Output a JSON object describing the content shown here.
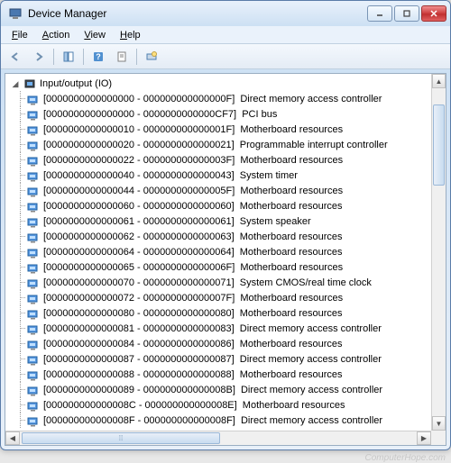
{
  "window": {
    "title": "Device Manager"
  },
  "menus": [
    "File",
    "Action",
    "View",
    "Help"
  ],
  "category": {
    "label": "Input/output (IO)"
  },
  "items": [
    {
      "range": "[0000000000000000 - 000000000000000F]",
      "label": "Direct memory access controller"
    },
    {
      "range": "[0000000000000000 - 0000000000000CF7]",
      "label": "PCI bus"
    },
    {
      "range": "[0000000000000010 - 000000000000001F]",
      "label": "Motherboard resources"
    },
    {
      "range": "[0000000000000020 - 0000000000000021]",
      "label": "Programmable interrupt controller"
    },
    {
      "range": "[0000000000000022 - 000000000000003F]",
      "label": "Motherboard resources"
    },
    {
      "range": "[0000000000000040 - 0000000000000043]",
      "label": "System timer"
    },
    {
      "range": "[0000000000000044 - 000000000000005F]",
      "label": "Motherboard resources"
    },
    {
      "range": "[0000000000000060 - 0000000000000060]",
      "label": "Motherboard resources"
    },
    {
      "range": "[0000000000000061 - 0000000000000061]",
      "label": "System speaker"
    },
    {
      "range": "[0000000000000062 - 0000000000000063]",
      "label": "Motherboard resources"
    },
    {
      "range": "[0000000000000064 - 0000000000000064]",
      "label": "Motherboard resources"
    },
    {
      "range": "[0000000000000065 - 000000000000006F]",
      "label": "Motherboard resources"
    },
    {
      "range": "[0000000000000070 - 0000000000000071]",
      "label": "System CMOS/real time clock"
    },
    {
      "range": "[0000000000000072 - 000000000000007F]",
      "label": "Motherboard resources"
    },
    {
      "range": "[0000000000000080 - 0000000000000080]",
      "label": "Motherboard resources"
    },
    {
      "range": "[0000000000000081 - 0000000000000083]",
      "label": "Direct memory access controller"
    },
    {
      "range": "[0000000000000084 - 0000000000000086]",
      "label": "Motherboard resources"
    },
    {
      "range": "[0000000000000087 - 0000000000000087]",
      "label": "Direct memory access controller"
    },
    {
      "range": "[0000000000000088 - 0000000000000088]",
      "label": "Motherboard resources"
    },
    {
      "range": "[0000000000000089 - 000000000000008B]",
      "label": "Direct memory access controller"
    },
    {
      "range": "[000000000000008C - 000000000000008E]",
      "label": "Motherboard resources"
    },
    {
      "range": "[000000000000008F - 000000000000008F]",
      "label": "Direct memory access controller"
    }
  ],
  "watermark": "ComputerHope.com"
}
